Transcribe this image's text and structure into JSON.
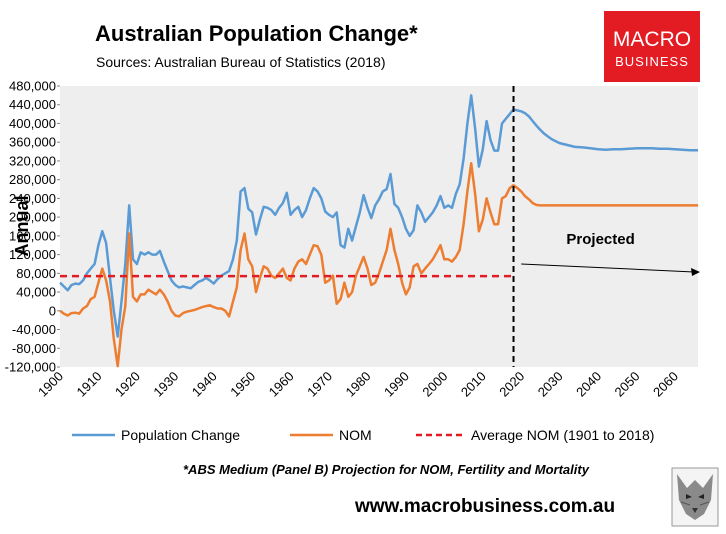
{
  "logo": {
    "line1": "MACRO",
    "line2": "BUSINESS",
    "bg_color": "#e31b23"
  },
  "website": "www.macrobusiness.com.au",
  "footnote": "*ABS Medium (Panel B) Projection for NOM, Fertility and Mortality",
  "chart_data": {
    "type": "line",
    "title": "Australian Population Change*",
    "subtitle": "Sources: Australian Bureau of Statistics (2018)",
    "xlabel": "",
    "ylabel": "Annual",
    "ylim": [
      -120000,
      480000
    ],
    "xlim": [
      1900,
      2066
    ],
    "y_ticks": [
      "480,000",
      "440,000",
      "400,000",
      "360,000",
      "320,000",
      "280,000",
      "240,000",
      "200,000",
      "160,000",
      "120,000",
      "80,000",
      "40,000",
      "0",
      "-40,000",
      "-80,000",
      "-120,000"
    ],
    "x_ticks": [
      "1900",
      "1910",
      "1920",
      "1930",
      "1940",
      "1950",
      "1960",
      "1970",
      "1980",
      "1990",
      "2000",
      "2010",
      "2020",
      "2030",
      "2040",
      "2050",
      "2060"
    ],
    "grid": false,
    "plot_background": "#eeeeee",
    "legend_position": "bottom",
    "annotation": {
      "text": "Projected",
      "from_year": 2020,
      "to_year": 2066,
      "value": 100000
    },
    "projection_divider_year": 2018,
    "series": [
      {
        "name": "Population Change",
        "color": "#5b9bd5",
        "points": [
          [
            1900,
            60000
          ],
          [
            1901,
            52000
          ],
          [
            1902,
            44000
          ],
          [
            1903,
            55000
          ],
          [
            1904,
            58000
          ],
          [
            1905,
            57000
          ],
          [
            1906,
            65000
          ],
          [
            1907,
            80000
          ],
          [
            1908,
            90000
          ],
          [
            1909,
            100000
          ],
          [
            1910,
            140000
          ],
          [
            1911,
            170000
          ],
          [
            1912,
            145000
          ],
          [
            1913,
            70000
          ],
          [
            1914,
            0
          ],
          [
            1915,
            -55000
          ],
          [
            1916,
            20000
          ],
          [
            1917,
            100000
          ],
          [
            1918,
            225000
          ],
          [
            1919,
            110000
          ],
          [
            1920,
            100000
          ],
          [
            1921,
            125000
          ],
          [
            1922,
            120000
          ],
          [
            1923,
            125000
          ],
          [
            1924,
            120000
          ],
          [
            1925,
            120000
          ],
          [
            1926,
            128000
          ],
          [
            1927,
            105000
          ],
          [
            1928,
            85000
          ],
          [
            1929,
            65000
          ],
          [
            1930,
            55000
          ],
          [
            1931,
            50000
          ],
          [
            1932,
            52000
          ],
          [
            1933,
            50000
          ],
          [
            1934,
            48000
          ],
          [
            1935,
            55000
          ],
          [
            1936,
            62000
          ],
          [
            1937,
            65000
          ],
          [
            1938,
            70000
          ],
          [
            1939,
            65000
          ],
          [
            1940,
            58000
          ],
          [
            1941,
            68000
          ],
          [
            1942,
            75000
          ],
          [
            1943,
            80000
          ],
          [
            1944,
            85000
          ],
          [
            1945,
            110000
          ],
          [
            1946,
            150000
          ],
          [
            1947,
            255000
          ],
          [
            1948,
            262000
          ],
          [
            1949,
            218000
          ],
          [
            1950,
            210000
          ],
          [
            1951,
            163000
          ],
          [
            1952,
            195000
          ],
          [
            1953,
            222000
          ],
          [
            1954,
            220000
          ],
          [
            1955,
            215000
          ],
          [
            1956,
            205000
          ],
          [
            1957,
            220000
          ],
          [
            1958,
            230000
          ],
          [
            1959,
            252000
          ],
          [
            1960,
            205000
          ],
          [
            1961,
            215000
          ],
          [
            1962,
            222000
          ],
          [
            1963,
            200000
          ],
          [
            1964,
            215000
          ],
          [
            1965,
            240000
          ],
          [
            1966,
            262000
          ],
          [
            1967,
            255000
          ],
          [
            1968,
            240000
          ],
          [
            1969,
            212000
          ],
          [
            1970,
            205000
          ],
          [
            1971,
            200000
          ],
          [
            1972,
            210000
          ],
          [
            1973,
            140000
          ],
          [
            1974,
            135000
          ],
          [
            1975,
            175000
          ],
          [
            1976,
            150000
          ],
          [
            1977,
            180000
          ],
          [
            1978,
            210000
          ],
          [
            1979,
            247000
          ],
          [
            1980,
            220000
          ],
          [
            1981,
            198000
          ],
          [
            1982,
            225000
          ],
          [
            1983,
            238000
          ],
          [
            1984,
            255000
          ],
          [
            1985,
            260000
          ],
          [
            1986,
            292000
          ],
          [
            1987,
            228000
          ],
          [
            1988,
            220000
          ],
          [
            1989,
            200000
          ],
          [
            1990,
            175000
          ],
          [
            1991,
            160000
          ],
          [
            1992,
            172000
          ],
          [
            1993,
            225000
          ],
          [
            1994,
            210000
          ],
          [
            1995,
            190000
          ],
          [
            1996,
            200000
          ],
          [
            1997,
            210000
          ],
          [
            1998,
            225000
          ],
          [
            1999,
            245000
          ],
          [
            2000,
            220000
          ],
          [
            2001,
            225000
          ],
          [
            2002,
            220000
          ],
          [
            2003,
            250000
          ],
          [
            2004,
            270000
          ],
          [
            2005,
            325000
          ],
          [
            2006,
            400000
          ],
          [
            2007,
            460000
          ],
          [
            2008,
            390000
          ],
          [
            2009,
            308000
          ],
          [
            2010,
            345000
          ],
          [
            2011,
            405000
          ],
          [
            2012,
            365000
          ],
          [
            2013,
            342000
          ],
          [
            2014,
            342000
          ],
          [
            2015,
            400000
          ],
          [
            2016,
            410000
          ],
          [
            2017,
            420000
          ],
          [
            2018,
            430000
          ],
          [
            2019,
            428000
          ],
          [
            2020,
            426000
          ],
          [
            2021,
            422000
          ],
          [
            2022,
            415000
          ],
          [
            2023,
            405000
          ],
          [
            2024,
            395000
          ],
          [
            2025,
            386000
          ],
          [
            2026,
            378000
          ],
          [
            2027,
            372000
          ],
          [
            2028,
            366000
          ],
          [
            2029,
            362000
          ],
          [
            2030,
            358000
          ],
          [
            2032,
            354000
          ],
          [
            2034,
            350000
          ],
          [
            2036,
            349000
          ],
          [
            2038,
            347000
          ],
          [
            2040,
            345000
          ],
          [
            2042,
            344000
          ],
          [
            2044,
            345000
          ],
          [
            2046,
            345000
          ],
          [
            2048,
            346000
          ],
          [
            2050,
            347000
          ],
          [
            2052,
            347000
          ],
          [
            2054,
            347000
          ],
          [
            2056,
            346000
          ],
          [
            2058,
            346000
          ],
          [
            2060,
            345000
          ],
          [
            2062,
            344000
          ],
          [
            2064,
            343000
          ],
          [
            2066,
            343000
          ]
        ]
      },
      {
        "name": "NOM",
        "color": "#ed7d31",
        "points": [
          [
            1900,
            0
          ],
          [
            1901,
            -6000
          ],
          [
            1902,
            -10000
          ],
          [
            1903,
            -5000
          ],
          [
            1904,
            -4000
          ],
          [
            1905,
            -6000
          ],
          [
            1906,
            5000
          ],
          [
            1907,
            10000
          ],
          [
            1908,
            25000
          ],
          [
            1909,
            30000
          ],
          [
            1910,
            60000
          ],
          [
            1911,
            90000
          ],
          [
            1912,
            65000
          ],
          [
            1913,
            20000
          ],
          [
            1914,
            -60000
          ],
          [
            1915,
            -118000
          ],
          [
            1916,
            -40000
          ],
          [
            1917,
            10000
          ],
          [
            1918,
            165000
          ],
          [
            1919,
            30000
          ],
          [
            1920,
            20000
          ],
          [
            1921,
            35000
          ],
          [
            1922,
            35000
          ],
          [
            1923,
            45000
          ],
          [
            1924,
            40000
          ],
          [
            1925,
            35000
          ],
          [
            1926,
            45000
          ],
          [
            1927,
            35000
          ],
          [
            1928,
            20000
          ],
          [
            1929,
            0
          ],
          [
            1930,
            -10000
          ],
          [
            1931,
            -12000
          ],
          [
            1932,
            -5000
          ],
          [
            1933,
            -2000
          ],
          [
            1934,
            0
          ],
          [
            1935,
            2000
          ],
          [
            1936,
            5000
          ],
          [
            1937,
            8000
          ],
          [
            1938,
            10000
          ],
          [
            1939,
            12000
          ],
          [
            1940,
            8000
          ],
          [
            1941,
            5000
          ],
          [
            1942,
            5000
          ],
          [
            1943,
            0
          ],
          [
            1944,
            -12000
          ],
          [
            1945,
            20000
          ],
          [
            1946,
            50000
          ],
          [
            1947,
            130000
          ],
          [
            1948,
            165000
          ],
          [
            1949,
            110000
          ],
          [
            1950,
            95000
          ],
          [
            1951,
            40000
          ],
          [
            1952,
            70000
          ],
          [
            1953,
            95000
          ],
          [
            1954,
            90000
          ],
          [
            1955,
            75000
          ],
          [
            1956,
            70000
          ],
          [
            1957,
            80000
          ],
          [
            1958,
            90000
          ],
          [
            1959,
            70000
          ],
          [
            1960,
            65000
          ],
          [
            1961,
            90000
          ],
          [
            1962,
            105000
          ],
          [
            1963,
            110000
          ],
          [
            1964,
            100000
          ],
          [
            1965,
            120000
          ],
          [
            1966,
            140000
          ],
          [
            1967,
            138000
          ],
          [
            1968,
            120000
          ],
          [
            1969,
            60000
          ],
          [
            1970,
            65000
          ],
          [
            1971,
            75000
          ],
          [
            1972,
            15000
          ],
          [
            1973,
            25000
          ],
          [
            1974,
            60000
          ],
          [
            1975,
            30000
          ],
          [
            1976,
            40000
          ],
          [
            1977,
            75000
          ],
          [
            1978,
            95000
          ],
          [
            1979,
            115000
          ],
          [
            1980,
            90000
          ],
          [
            1981,
            55000
          ],
          [
            1982,
            60000
          ],
          [
            1983,
            80000
          ],
          [
            1984,
            105000
          ],
          [
            1985,
            130000
          ],
          [
            1986,
            175000
          ],
          [
            1987,
            130000
          ],
          [
            1988,
            100000
          ],
          [
            1989,
            60000
          ],
          [
            1990,
            35000
          ],
          [
            1991,
            50000
          ],
          [
            1992,
            95000
          ],
          [
            1993,
            100000
          ],
          [
            1994,
            80000
          ],
          [
            1995,
            90000
          ],
          [
            1996,
            100000
          ],
          [
            1997,
            110000
          ],
          [
            1998,
            125000
          ],
          [
            1999,
            140000
          ],
          [
            2000,
            110000
          ],
          [
            2001,
            110000
          ],
          [
            2002,
            105000
          ],
          [
            2003,
            115000
          ],
          [
            2004,
            130000
          ],
          [
            2005,
            185000
          ],
          [
            2006,
            255000
          ],
          [
            2007,
            315000
          ],
          [
            2008,
            250000
          ],
          [
            2009,
            170000
          ],
          [
            2010,
            195000
          ],
          [
            2011,
            240000
          ],
          [
            2012,
            210000
          ],
          [
            2013,
            185000
          ],
          [
            2014,
            185000
          ],
          [
            2015,
            240000
          ],
          [
            2016,
            245000
          ],
          [
            2017,
            262000
          ],
          [
            2018,
            268000
          ],
          [
            2019,
            262000
          ],
          [
            2020,
            255000
          ],
          [
            2021,
            245000
          ],
          [
            2022,
            238000
          ],
          [
            2023,
            230000
          ],
          [
            2024,
            226000
          ],
          [
            2025,
            225000
          ],
          [
            2030,
            225000
          ],
          [
            2040,
            225000
          ],
          [
            2050,
            225000
          ],
          [
            2060,
            225000
          ],
          [
            2066,
            225000
          ]
        ]
      },
      {
        "name": "Average NOM (1901 to 2018)",
        "color": "#e31b23",
        "points": [
          [
            1900,
            74000
          ],
          [
            2018,
            74000
          ]
        ]
      }
    ]
  }
}
